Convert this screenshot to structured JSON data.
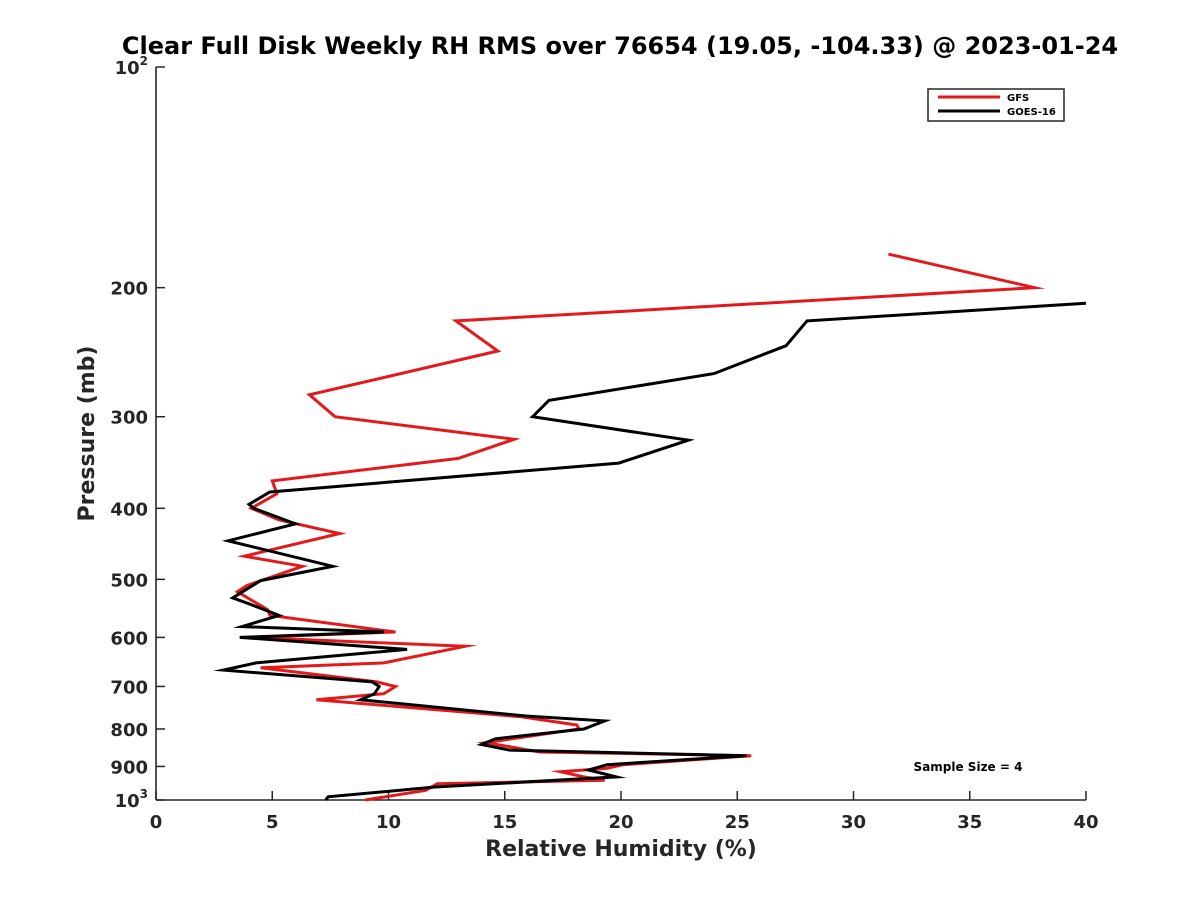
{
  "chart_data": {
    "type": "line",
    "title": "Clear Full Disk Weekly RH RMS over 76654 (19.05, -104.33) @ 2023-01-24",
    "xlabel": "Relative Humidity (%)",
    "ylabel": "Pressure (mb)",
    "xlim": [
      0,
      40
    ],
    "ylim": [
      100,
      1000
    ],
    "yscale": "log",
    "yreversed": true,
    "grid": false,
    "xticks": [
      0,
      5,
      10,
      15,
      20,
      25,
      30,
      35,
      40
    ],
    "xtick_labels": [
      "0",
      "5",
      "10",
      "15",
      "20",
      "25",
      "30",
      "35",
      "40"
    ],
    "yticks": [
      {
        "value": 100,
        "base": "10",
        "exp": "2"
      },
      {
        "value": 200,
        "label": "200"
      },
      {
        "value": 300,
        "label": "300"
      },
      {
        "value": 400,
        "label": "400"
      },
      {
        "value": 500,
        "label": "500"
      },
      {
        "value": 600,
        "label": "600"
      },
      {
        "value": 700,
        "label": "700"
      },
      {
        "value": 800,
        "label": "800"
      },
      {
        "value": 900,
        "label": "900"
      },
      {
        "value": 1000,
        "base": "10",
        "exp": "3"
      }
    ],
    "legend_position": "top-right",
    "annotation": "Sample Size = 4",
    "series": [
      {
        "name": "GFS",
        "color": "#e31a1c",
        "x": [
          31.5,
          37.8,
          12.9,
          14.7,
          6.6,
          7.7,
          15.4,
          13.0,
          5.0,
          5.2,
          4.1,
          5.3,
          7.9,
          3.8,
          6.3,
          3.9,
          3.5,
          4.8,
          4.9,
          10.3,
          4.1,
          13.3,
          9.8,
          4.5,
          9.5,
          10.3,
          9.8,
          6.9,
          15.7,
          18.1,
          18.2,
          14.2,
          15.6,
          16.5,
          25.6,
          20.1,
          19.4,
          17.4,
          18.4,
          19.3,
          12.1,
          11.6,
          9.0
        ],
        "y": [
          180,
          200,
          222,
          244,
          280,
          300,
          322,
          342,
          367,
          382,
          400,
          415,
          433,
          465,
          480,
          510,
          520,
          550,
          560,
          590,
          600,
          617,
          650,
          660,
          690,
          700,
          716,
          730,
          770,
          790,
          800,
          835,
          850,
          860,
          870,
          895,
          905,
          915,
          930,
          940,
          950,
          970,
          1000
        ]
      },
      {
        "name": "GOES-16",
        "color": "#000000",
        "x": [
          40.0,
          28.0,
          27.1,
          24.0,
          16.9,
          16.2,
          22.9,
          19.9,
          4.9,
          4.0,
          4.2,
          6.0,
          3.1,
          7.6,
          4.5,
          3.3,
          4.0,
          5.3,
          3.7,
          9.8,
          3.6,
          10.8,
          4.3,
          2.9,
          9.3,
          9.6,
          9.4,
          8.8,
          15.9,
          19.3,
          18.4,
          14.6,
          14.0,
          15.2,
          25.4,
          19.4,
          18.6,
          19.8,
          12.0,
          7.4,
          7.3
        ],
        "y": [
          210,
          222,
          240,
          262,
          285,
          300,
          323,
          347,
          380,
          395,
          400,
          420,
          443,
          480,
          502,
          530,
          540,
          560,
          580,
          590,
          600,
          623,
          650,
          665,
          690,
          700,
          716,
          730,
          768,
          780,
          800,
          825,
          840,
          855,
          870,
          895,
          910,
          930,
          960,
          990,
          1000
        ]
      }
    ]
  }
}
